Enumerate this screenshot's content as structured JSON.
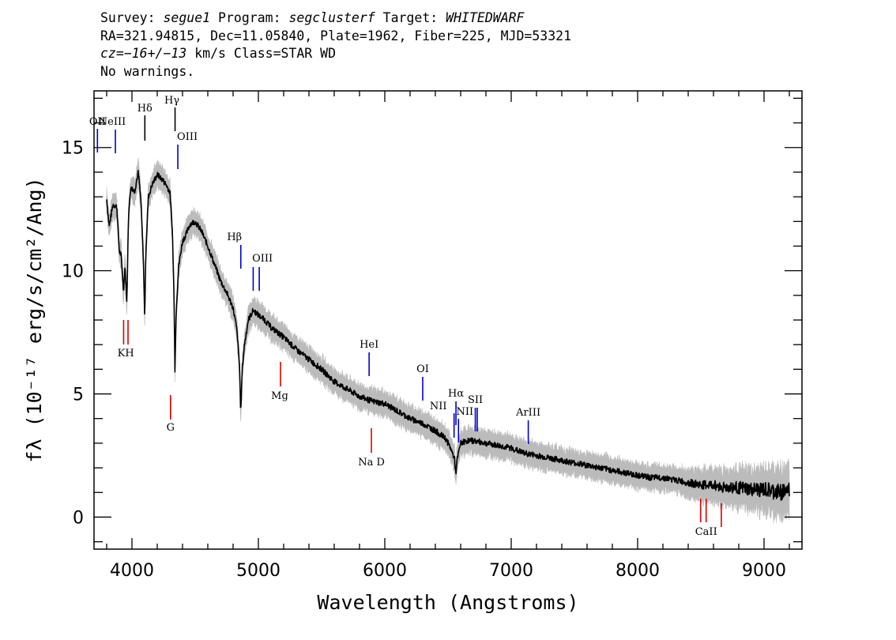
{
  "header": {
    "line1": {
      "survey_label": "Survey:",
      "survey": "segue1",
      "program_label": "Program:",
      "program": "segclusterf",
      "target_label": "Target:",
      "target": "WHITEDWARF"
    },
    "line2": "RA=321.94815, Dec=11.05840, Plate=1962, Fiber=225, MJD=53321",
    "line3": {
      "cz_label": "cz=",
      "cz_value": "−16+/−13",
      "rest": " km/s Class=STAR WD"
    },
    "line4": "No warnings."
  },
  "chart_data": {
    "type": "line",
    "title": "",
    "xlabel": "Wavelength (Angstroms)",
    "ylabel": "fλ (10⁻¹⁷ erg/s/cm²/Ang)",
    "xlim": [
      3700,
      9300
    ],
    "ylim": [
      -1.3,
      17.3
    ],
    "xticks": [
      4000,
      5000,
      6000,
      7000,
      8000,
      9000
    ],
    "xtick_labels": [
      "4000",
      "5000",
      "6000",
      "7000",
      "8000",
      "9000"
    ],
    "yticks": [
      0,
      5,
      10,
      15
    ],
    "ytick_labels": [
      "0",
      "5",
      "10",
      "15"
    ],
    "grid": false,
    "colors": {
      "flux": "#000000",
      "error_band": "#bbbbbb",
      "emission": "#0000cc",
      "absorption": "#dd0000"
    },
    "series": [
      {
        "values_x": [
          3800,
          3820,
          3850,
          3880,
          3900,
          3915,
          3933,
          3945,
          3960,
          3970,
          3985,
          4000,
          4020,
          4050,
          4070,
          4090,
          4101,
          4110,
          4130,
          4160,
          4200,
          4240,
          4270,
          4300,
          4320,
          4335,
          4340,
          4350,
          4370,
          4400,
          4430,
          4460,
          4500,
          4550,
          4600,
          4650,
          4700,
          4750,
          4800,
          4830,
          4850,
          4861,
          4872,
          4890,
          4920,
          4960,
          5000,
          5050,
          5100,
          5200,
          5300,
          5400,
          5500,
          5600,
          5700,
          5800,
          5900,
          6000,
          6100,
          6200,
          6300,
          6400,
          6480,
          6520,
          6550,
          6562,
          6575,
          6600,
          6650,
          6700,
          6800,
          6900,
          7000,
          7100,
          7200,
          7300,
          7400,
          7500,
          7600,
          7700,
          7800,
          7900,
          8000,
          8100,
          8200,
          8300,
          8400,
          8500,
          8600,
          8700,
          8800,
          8900,
          9000,
          9100,
          9200
        ],
        "values_y": [
          12.9,
          11.8,
          12.7,
          12.6,
          10.8,
          10.6,
          9.2,
          10.2,
          8.6,
          11.8,
          13.2,
          13.4,
          13.2,
          14.0,
          12.9,
          10.5,
          8.1,
          10.8,
          13.0,
          13.5,
          13.9,
          13.7,
          13.5,
          13.2,
          11.6,
          8.4,
          6.0,
          8.4,
          10.2,
          11.2,
          11.5,
          11.9,
          12.0,
          11.6,
          11.0,
          10.3,
          9.6,
          9.1,
          8.5,
          7.6,
          6.2,
          4.2,
          6.0,
          7.0,
          8.0,
          8.4,
          8.2,
          8.0,
          7.7,
          7.3,
          6.8,
          6.4,
          6.0,
          5.5,
          5.2,
          4.9,
          4.7,
          4.6,
          4.3,
          4.0,
          3.8,
          3.5,
          3.2,
          2.8,
          2.4,
          1.8,
          2.4,
          3.0,
          3.1,
          3.1,
          3.0,
          2.9,
          2.8,
          2.6,
          2.5,
          2.4,
          2.3,
          2.2,
          2.1,
          2.0,
          1.9,
          1.8,
          1.7,
          1.6,
          1.6,
          1.5,
          1.4,
          1.3,
          1.3,
          1.2,
          1.2,
          1.1,
          1.1,
          1.0,
          1.1
        ]
      }
    ],
    "emission_lines": [
      {
        "label": "OII",
        "wavelength": 3727
      },
      {
        "label": "NeIII",
        "wavelength": 3869
      },
      {
        "label": "Hδ",
        "wavelength": 4102
      },
      {
        "label": "Hγ",
        "wavelength": 4341
      },
      {
        "label": "OIII",
        "wavelength": 4363
      },
      {
        "label": "Hβ",
        "wavelength": 4861
      },
      {
        "label": "OIII",
        "wavelength": 4959
      },
      {
        "label": "OIII",
        "wavelength": 5007
      },
      {
        "label": "HeI",
        "wavelength": 5876
      },
      {
        "label": "OI",
        "wavelength": 6300
      },
      {
        "label": "NII",
        "wavelength": 6548
      },
      {
        "label": "Hα",
        "wavelength": 6563
      },
      {
        "label": "NII",
        "wavelength": 6583
      },
      {
        "label": "SII",
        "wavelength": 6716
      },
      {
        "label": "SII",
        "wavelength": 6731
      },
      {
        "label": "ArIII",
        "wavelength": 7135
      }
    ],
    "absorption_lines": [
      {
        "label": "K",
        "wavelength": 3934
      },
      {
        "label": "H",
        "wavelength": 3969
      },
      {
        "label": "G",
        "wavelength": 4305
      },
      {
        "label": "Mg",
        "wavelength": 5175
      },
      {
        "label": "Na D",
        "wavelength": 5894
      },
      {
        "label": "CaII",
        "wavelength": 8498
      },
      {
        "label": "CaII",
        "wavelength": 8542
      },
      {
        "label": "CaII",
        "wavelength": 8662
      }
    ]
  }
}
